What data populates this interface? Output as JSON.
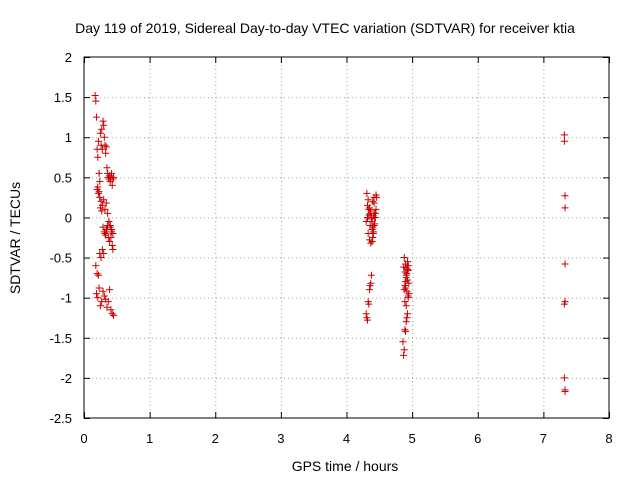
{
  "chart_data": {
    "type": "scatter",
    "title": "Day 119 of 2019, Sidereal Day-to-day VTEC variation (SDTVAR) for receiver ktia",
    "xlabel": "GPS time / hours",
    "ylabel": "SDTVAR / TECUs",
    "xlim": [
      0,
      8
    ],
    "ylim": [
      -2.5,
      2
    ],
    "xticks": [
      0,
      1,
      2,
      3,
      4,
      5,
      6,
      7,
      8
    ],
    "xtick_labels": [
      "0",
      "1",
      "2",
      "3",
      "4",
      "5",
      "6",
      "7",
      "8"
    ],
    "yticks": [
      -2.5,
      -2,
      -1.5,
      -1,
      -0.5,
      0,
      0.5,
      1,
      1.5,
      2
    ],
    "ytick_labels": [
      "-2.5",
      "-2",
      "-1.5",
      "-1",
      "-0.5",
      "0",
      "0.5",
      "1",
      "1.5",
      "2"
    ],
    "grid": true,
    "marker": "+",
    "color": "#cc0000",
    "series": [
      {
        "name": "SDTVAR",
        "x": [
          0.17,
          0.18,
          0.19,
          0.2,
          0.21,
          0.22,
          0.23,
          0.24,
          0.25,
          0.26,
          0.27,
          0.28,
          0.29,
          0.3,
          0.31,
          0.32,
          0.33,
          0.34,
          0.35,
          0.36,
          0.37,
          0.38,
          0.39,
          0.4,
          0.41,
          0.42,
          0.43,
          0.44,
          0.45,
          0.2,
          0.22,
          0.24,
          0.26,
          0.28,
          0.3,
          0.32,
          0.34,
          0.36,
          0.38,
          0.4,
          0.42,
          0.44,
          0.21,
          0.23,
          0.25,
          0.27,
          0.29,
          0.31,
          0.33,
          0.35,
          0.37,
          0.39,
          0.41,
          0.43,
          0.18,
          0.2,
          0.22,
          0.24,
          0.26,
          0.28,
          0.3,
          0.32,
          0.34,
          0.36,
          0.38,
          0.4,
          0.42,
          0.44,
          0.19,
          0.21,
          0.23,
          0.25,
          0.27,
          0.29,
          0.31,
          0.33,
          0.35,
          0.37,
          0.39,
          0.41,
          0.43,
          0.45,
          4.3,
          4.31,
          4.32,
          4.33,
          4.34,
          4.35,
          4.36,
          4.37,
          4.38,
          4.39,
          4.4,
          4.41,
          4.42,
          4.43,
          4.44,
          4.45,
          4.46,
          4.31,
          4.33,
          4.35,
          4.37,
          4.39,
          4.41,
          4.43,
          4.45,
          4.32,
          4.34,
          4.36,
          4.38,
          4.4,
          4.42,
          4.44,
          4.33,
          4.35,
          4.37,
          4.39,
          4.41,
          4.43,
          4.3,
          4.32,
          4.34,
          4.36,
          4.38,
          4.4,
          4.42,
          4.86,
          4.87,
          4.88,
          4.89,
          4.9,
          4.91,
          4.92,
          4.93,
          4.94,
          4.95,
          4.88,
          4.89,
          4.9,
          4.91,
          4.92,
          4.93,
          4.94,
          4.87,
          4.89,
          4.91,
          4.93,
          4.95,
          4.9,
          4.92,
          4.94,
          4.89,
          4.91,
          4.93,
          4.88,
          4.9,
          4.92,
          4.94,
          7.32,
          7.32,
          7.33,
          7.33,
          7.33,
          7.33,
          7.32,
          7.32,
          7.33,
          7.33
        ],
        "y": [
          1.52,
          1.45,
          1.25,
          0.85,
          0.75,
          0.95,
          0.55,
          0.45,
          1.05,
          0.9,
          1.1,
          0.85,
          1.2,
          1.15,
          1.0,
          0.9,
          0.8,
          0.88,
          0.62,
          0.55,
          0.5,
          0.48,
          0.52,
          0.45,
          0.5,
          0.55,
          0.4,
          0.48,
          0.5,
          0.35,
          0.3,
          0.25,
          0.2,
          0.15,
          0.22,
          0.1,
          0.18,
          0.05,
          -0.05,
          -0.1,
          -0.15,
          -0.2,
          0.38,
          0.32,
          0.12,
          0.08,
          -0.12,
          -0.18,
          -0.22,
          -0.15,
          -0.25,
          -0.3,
          -0.25,
          -0.35,
          -0.6,
          -0.7,
          -0.72,
          -0.45,
          -0.5,
          -0.4,
          -0.45,
          -0.2,
          -0.15,
          -0.1,
          -0.05,
          -0.12,
          -0.18,
          -0.4,
          -0.95,
          -1.0,
          -0.88,
          -1.1,
          -1.05,
          -0.92,
          -0.98,
          -1.02,
          -1.12,
          -1.05,
          -0.9,
          -1.15,
          -1.2,
          -1.22,
          -1.2,
          -1.25,
          -1.28,
          -1.05,
          -1.08,
          -0.9,
          -0.85,
          -0.82,
          -0.72,
          -0.3,
          -0.25,
          -0.2,
          -0.1,
          0.0,
          0.05,
          0.1,
          0.25,
          0.3,
          0.22,
          0.12,
          0.08,
          -0.05,
          0.02,
          -0.08,
          0.28,
          0.15,
          0.1,
          0.05,
          -0.02,
          -0.12,
          0.18,
          0.0,
          -0.2,
          -0.28,
          -0.32,
          -0.15,
          -0.18,
          0.05,
          -0.05,
          0.0,
          0.03,
          -0.1,
          0.0,
          0.2,
          0.25,
          -1.55,
          -1.72,
          -1.65,
          -1.4,
          -1.42,
          -1.3,
          -1.25,
          -1.2,
          -1.0,
          -0.95,
          -0.9,
          -0.85,
          -0.8,
          -0.75,
          -0.7,
          -0.65,
          -0.6,
          -0.62,
          -0.68,
          -0.72,
          -0.78,
          -0.82,
          -0.88,
          -0.92,
          -0.98,
          -1.05,
          -1.1,
          -0.55,
          -0.5,
          -0.58,
          -0.63,
          -0.66,
          1.03,
          0.95,
          0.27,
          0.12,
          -0.58,
          -1.05,
          -1.08,
          -2.0,
          -2.17,
          -2.15
        ]
      }
    ]
  }
}
